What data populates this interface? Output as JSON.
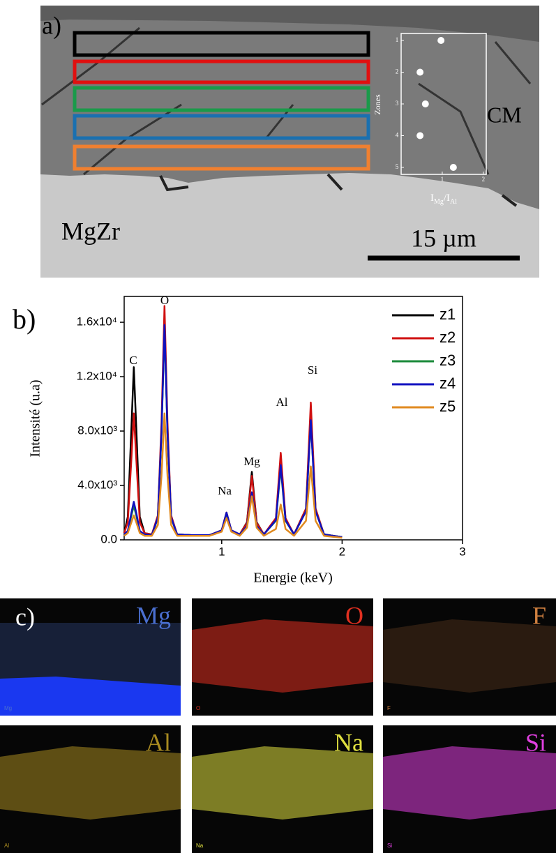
{
  "panel_a": {
    "label": "a)",
    "matrix_label": "MgZr",
    "layer_label": "CM",
    "scale_bar": "15 µm"
  },
  "chart_data": [
    {
      "type": "scatter",
      "ylabel": "Zones",
      "xlabel_parts": [
        "I",
        "Mg",
        "/I",
        "Al"
      ],
      "x": [
        0.97,
        0.46,
        0.59,
        0.46,
        1.27
      ],
      "values": [
        1,
        2,
        3,
        4,
        5
      ],
      "color": "#ffffff",
      "xlim": [
        0,
        2.07
      ],
      "xticks": [
        1,
        2
      ],
      "ylim": [
        0.78,
        5.22
      ],
      "yticks": [
        1,
        2,
        3,
        4,
        5
      ],
      "y_inverted": true
    },
    {
      "type": "line",
      "panel_label": "b)",
      "xlabel": "Energie (keV)",
      "ylabel": "Intensité (u.a)",
      "xlim": [
        0.19,
        3
      ],
      "xticks": [
        1,
        2,
        3
      ],
      "ylim": [
        0,
        17900
      ],
      "yticks": [
        {
          "value": 0,
          "label": "0.0"
        },
        {
          "value": 4000,
          "label": "4.0x10³"
        },
        {
          "value": 8000,
          "label": "8.0x10³"
        },
        {
          "value": 12000,
          "label": "1.2x10⁴"
        },
        {
          "value": 16000,
          "label": "1.6x10⁴"
        }
      ],
      "legend": "top-right",
      "annotations": [
        "C",
        "O",
        "Na",
        "Mg",
        "Al",
        "Si"
      ],
      "x": [
        0.19,
        0.22,
        0.25,
        0.27,
        0.29,
        0.32,
        0.36,
        0.42,
        0.47,
        0.5,
        0.525,
        0.55,
        0.58,
        0.63,
        0.75,
        0.9,
        1.0,
        1.04,
        1.08,
        1.15,
        1.21,
        1.25,
        1.29,
        1.35,
        1.45,
        1.49,
        1.53,
        1.6,
        1.7,
        1.74,
        1.78,
        1.85,
        2.0
      ],
      "series": [
        {
          "name": "z1",
          "color": "#000000",
          "values": [
            500,
            1700,
            8300,
            12700,
            8300,
            1700,
            500,
            400,
            1700,
            8000,
            16000,
            8000,
            1700,
            400,
            350,
            350,
            700,
            2000,
            700,
            400,
            1300,
            5000,
            1300,
            400,
            1500,
            6000,
            1500,
            400,
            2200,
            9500,
            2200,
            400,
            200
          ]
        },
        {
          "name": "z2",
          "color": "#d01010",
          "values": [
            500,
            1300,
            6000,
            9300,
            6000,
            1300,
            500,
            400,
            1800,
            8600,
            17200,
            8600,
            1800,
            400,
            350,
            350,
            700,
            2000,
            700,
            400,
            1250,
            4700,
            1250,
            400,
            1600,
            6400,
            1600,
            400,
            2300,
            10100,
            2300,
            400,
            200
          ]
        },
        {
          "name": "z3",
          "color": "#1a8a3a",
          "values": [
            400,
            600,
            1800,
            2500,
            1800,
            600,
            400,
            350,
            1600,
            7800,
            15500,
            7800,
            1600,
            400,
            350,
            350,
            650,
            1900,
            650,
            400,
            1000,
            3500,
            1000,
            400,
            1400,
            5300,
            1400,
            400,
            2100,
            8700,
            2100,
            400,
            200
          ]
        },
        {
          "name": "z4",
          "color": "#1010c0",
          "values": [
            400,
            650,
            2000,
            2800,
            2000,
            650,
            400,
            350,
            1650,
            7900,
            15800,
            7900,
            1650,
            400,
            350,
            350,
            700,
            2000,
            700,
            400,
            1000,
            3500,
            1000,
            400,
            1450,
            5500,
            1450,
            400,
            2100,
            8800,
            2100,
            400,
            200
          ]
        },
        {
          "name": "z5",
          "color": "#e08a20",
          "values": [
            300,
            500,
            1300,
            1800,
            1300,
            500,
            300,
            300,
            1100,
            4700,
            9300,
            4700,
            1100,
            300,
            300,
            300,
            600,
            1600,
            600,
            300,
            900,
            3200,
            900,
            300,
            800,
            2600,
            800,
            300,
            1400,
            5400,
            1400,
            300,
            150
          ]
        }
      ]
    }
  ],
  "panel_c": {
    "label": "c)",
    "maps": [
      {
        "element": "Mg",
        "color": "#4a6fd0"
      },
      {
        "element": "O",
        "color": "#e03020"
      },
      {
        "element": "F",
        "color": "#d08040"
      },
      {
        "element": "Al",
        "color": "#a88a20"
      },
      {
        "element": "Na",
        "color": "#e0e040"
      },
      {
        "element": "Si",
        "color": "#e040e0"
      }
    ]
  }
}
